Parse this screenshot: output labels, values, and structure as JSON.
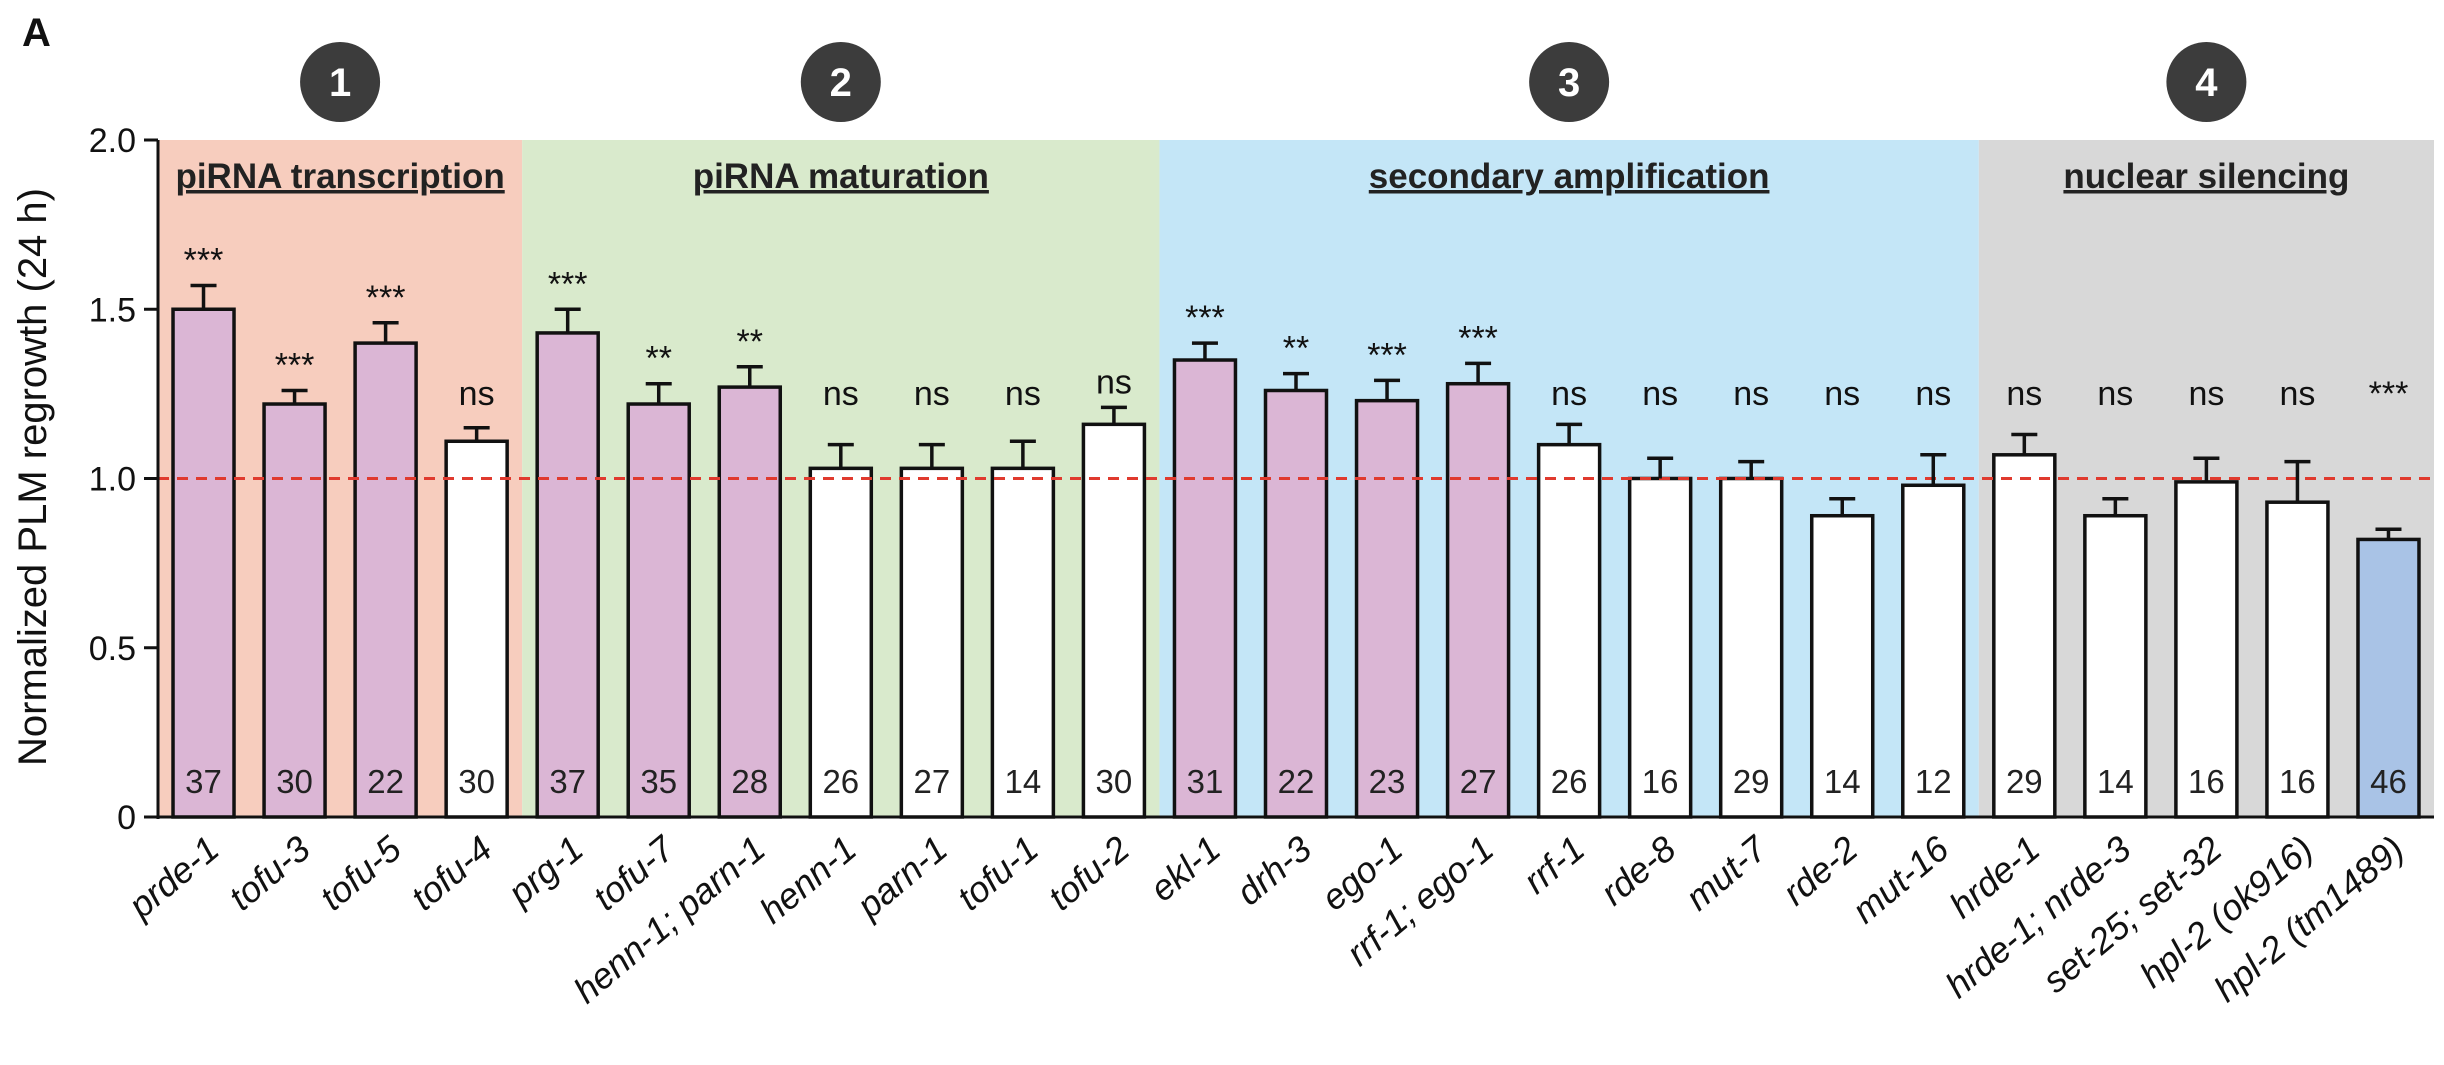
{
  "panel_label": "A",
  "colors": {
    "group_backgrounds": [
      "#f7cdbe",
      "#d9eacc",
      "#c4e6f7",
      "#d8d8d8"
    ],
    "bar_significant": "#dbb6d5",
    "bar_ns": "#ffffff",
    "bar_decrease": "#a9c3e6",
    "reference_line": "#e03a2e",
    "badge_fill": "#3c3c3c"
  },
  "chart_data": {
    "type": "bar",
    "ylabel": "Normalized PLM regrowth (24 h)",
    "ylim": [
      0,
      2.0
    ],
    "yticks": [
      "0",
      "0.5",
      "1.0",
      "1.5",
      "2.0"
    ],
    "reference_line": 1.0,
    "groups": [
      {
        "number": "1",
        "title": "piRNA transcription",
        "start": 0,
        "end": 3
      },
      {
        "number": "2",
        "title": "piRNA maturation",
        "start": 4,
        "end": 10
      },
      {
        "number": "3",
        "title": "secondary amplification",
        "start": 11,
        "end": 19
      },
      {
        "number": "4",
        "title": "nuclear silencing",
        "start": 20,
        "end": 24
      }
    ],
    "bars": [
      {
        "label": "prde-1",
        "value": 1.5,
        "error": 0.07,
        "n": "37",
        "sig": "***",
        "kind": "up"
      },
      {
        "label": "tofu-3",
        "value": 1.22,
        "error": 0.04,
        "n": "30",
        "sig": "***",
        "kind": "up"
      },
      {
        "label": "tofu-5",
        "value": 1.4,
        "error": 0.06,
        "n": "22",
        "sig": "***",
        "kind": "up"
      },
      {
        "label": "tofu-4",
        "value": 1.11,
        "error": 0.04,
        "n": "30",
        "sig": "ns",
        "kind": "ns"
      },
      {
        "label": "prg-1",
        "value": 1.43,
        "error": 0.07,
        "n": "37",
        "sig": "***",
        "kind": "up"
      },
      {
        "label": "tofu-7",
        "value": 1.22,
        "error": 0.06,
        "n": "35",
        "sig": "**",
        "kind": "up"
      },
      {
        "label": "henn-1; parn-1",
        "value": 1.27,
        "error": 0.06,
        "n": "28",
        "sig": "**",
        "kind": "up"
      },
      {
        "label": "henn-1",
        "value": 1.03,
        "error": 0.07,
        "n": "26",
        "sig": "ns",
        "kind": "ns"
      },
      {
        "label": "parn-1",
        "value": 1.03,
        "error": 0.07,
        "n": "27",
        "sig": "ns",
        "kind": "ns"
      },
      {
        "label": "tofu-1",
        "value": 1.03,
        "error": 0.08,
        "n": "14",
        "sig": "ns",
        "kind": "ns"
      },
      {
        "label": "tofu-2",
        "value": 1.16,
        "error": 0.05,
        "n": "30",
        "sig": "ns",
        "kind": "ns"
      },
      {
        "label": "ekl-1",
        "value": 1.35,
        "error": 0.05,
        "n": "31",
        "sig": "***",
        "kind": "up"
      },
      {
        "label": "drh-3",
        "value": 1.26,
        "error": 0.05,
        "n": "22",
        "sig": "**",
        "kind": "up"
      },
      {
        "label": "ego-1",
        "value": 1.23,
        "error": 0.06,
        "n": "23",
        "sig": "***",
        "kind": "up"
      },
      {
        "label": "rrf-1; ego-1",
        "value": 1.28,
        "error": 0.06,
        "n": "27",
        "sig": "***",
        "kind": "up"
      },
      {
        "label": "rrf-1",
        "value": 1.1,
        "error": 0.06,
        "n": "26",
        "sig": "ns",
        "kind": "ns"
      },
      {
        "label": "rde-8",
        "value": 1.0,
        "error": 0.06,
        "n": "16",
        "sig": "ns",
        "kind": "ns"
      },
      {
        "label": "mut-7",
        "value": 1.0,
        "error": 0.05,
        "n": "29",
        "sig": "ns",
        "kind": "ns"
      },
      {
        "label": "rde-2",
        "value": 0.89,
        "error": 0.05,
        "n": "14",
        "sig": "ns",
        "kind": "ns"
      },
      {
        "label": "mut-16",
        "value": 0.98,
        "error": 0.09,
        "n": "12",
        "sig": "ns",
        "kind": "ns"
      },
      {
        "label": "hrde-1",
        "value": 1.07,
        "error": 0.06,
        "n": "29",
        "sig": "ns",
        "kind": "ns"
      },
      {
        "label": "hrde-1; nrde-3",
        "value": 0.89,
        "error": 0.05,
        "n": "14",
        "sig": "ns",
        "kind": "ns"
      },
      {
        "label": "set-25; set-32",
        "value": 0.99,
        "error": 0.07,
        "n": "16",
        "sig": "ns",
        "kind": "ns"
      },
      {
        "label": "hpl-2 (ok916)",
        "value": 0.93,
        "error": 0.12,
        "n": "16",
        "sig": "ns",
        "kind": "ns"
      },
      {
        "label": "hpl-2 (tm1489)",
        "value": 0.82,
        "error": 0.03,
        "n": "46",
        "sig": "***",
        "kind": "down"
      }
    ]
  }
}
